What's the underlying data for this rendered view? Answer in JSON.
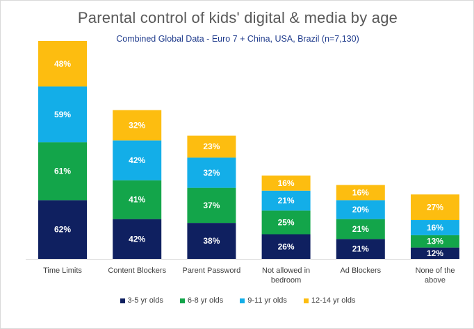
{
  "chart_data": {
    "type": "bar",
    "stacked": true,
    "title": "Parental control of kids' digital & media by age",
    "subtitle": "Combined Global Data - Euro 7 + China, USA, Brazil (n=7,130)",
    "categories": [
      "Time Limits",
      "Content Blockers",
      "Parent Password",
      "Not allowed in bedroom",
      "Ad Blockers",
      "None of the above"
    ],
    "series": [
      {
        "name": "3-5 yr olds",
        "color": "#0f2060",
        "values": [
          62,
          42,
          38,
          26,
          21,
          12
        ]
      },
      {
        "name": "6-8 yr olds",
        "color": "#13a54a",
        "values": [
          61,
          41,
          37,
          25,
          21,
          13
        ]
      },
      {
        "name": "9-11 yr olds",
        "color": "#13aee8",
        "values": [
          59,
          42,
          32,
          21,
          20,
          16
        ]
      },
      {
        "name": "12-14 yr olds",
        "color": "#fdbd10",
        "values": [
          48,
          32,
          23,
          16,
          16,
          27
        ]
      }
    ],
    "value_suffix": "%",
    "grid": false,
    "legend_position": "bottom"
  }
}
